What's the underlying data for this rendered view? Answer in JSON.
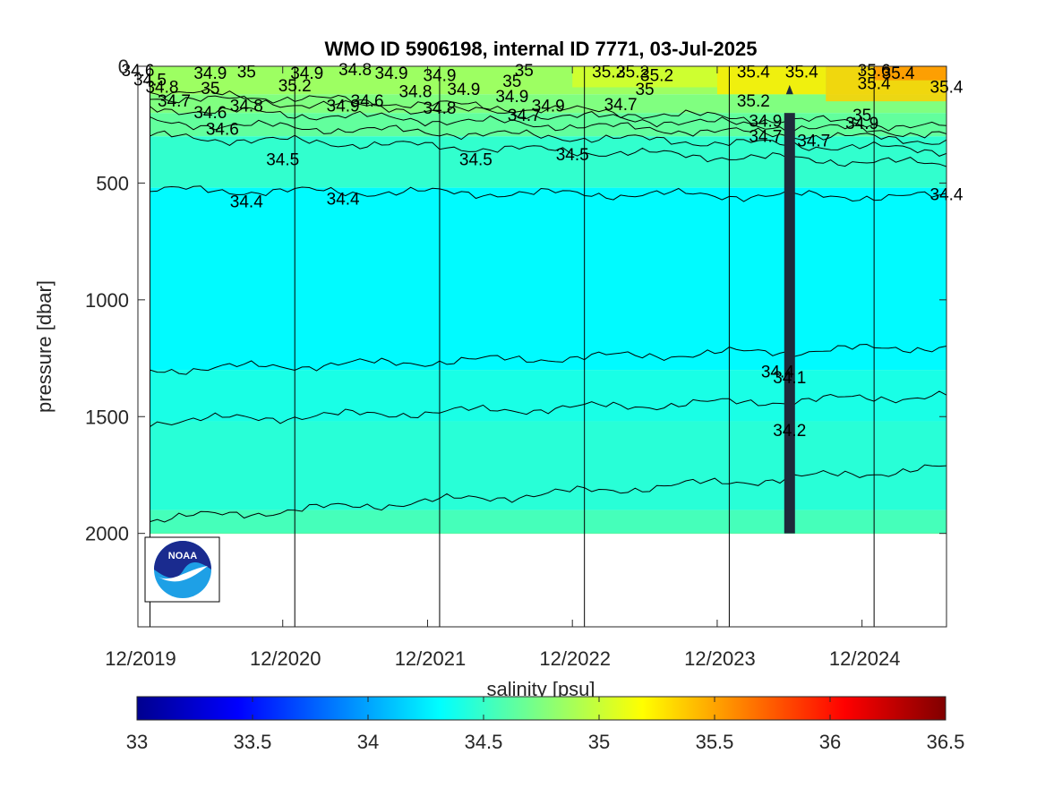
{
  "chart_data": {
    "type": "heatmap",
    "title": "WMO ID 5906198, internal ID 7771, 03-Jul-2025",
    "ylabel": "pressure [dbar]",
    "colorbar_label": "salinity [psu]",
    "ylim": [
      0,
      2400
    ],
    "y_reversed": true,
    "yticks": [
      0,
      500,
      1000,
      1500,
      2000
    ],
    "ytick_labels": [
      "0",
      "500",
      "1000",
      "1500",
      "2000"
    ],
    "xlim": [
      "2019-12",
      "2025-07"
    ],
    "xticks": [
      "2019-12",
      "2020-12",
      "2021-12",
      "2022-12",
      "2023-12",
      "2024-12"
    ],
    "xtick_labels": [
      "12/2019",
      "12/2020",
      "12/2021",
      "12/2022",
      "12/2023",
      "12/2024"
    ],
    "data_start": "2020-01",
    "data_end": "2025-07",
    "max_depth_dbar": 2000,
    "colorbar_range": [
      33,
      36.5
    ],
    "colorbar_ticks": [
      33,
      33.5,
      34,
      34.5,
      35,
      35.5,
      36,
      36.5
    ],
    "colorbar_tick_labels": [
      "33",
      "33.5",
      "34",
      "34.5",
      "35",
      "35.5",
      "36",
      "36.5"
    ],
    "colormap": "jet",
    "year_markers": [
      "2020-01",
      "2021-01",
      "2022-01",
      "2023-01",
      "2024-01",
      "2025-01"
    ],
    "anomaly": {
      "date": "2024-06",
      "pressure_range": [
        80,
        2000
      ]
    },
    "contours": [
      {
        "level": 34.1,
        "pressure_start": 1300,
        "pressure_end": 1200
      },
      {
        "level": 34.2,
        "pressure_start": 1520,
        "pressure_end": 1410
      },
      {
        "level": 34.4,
        "pressure_start": 1940,
        "pressure_end": 1720
      },
      {
        "level": 34.4,
        "pressure_start": 530,
        "pressure_end": 560
      },
      {
        "level": 34.5,
        "pressure_start": 300,
        "pressure_end": 420
      },
      {
        "level": 34.6,
        "pressure_start": 240,
        "pressure_end": 360
      },
      {
        "level": 34.7,
        "pressure_start": 180,
        "pressure_end": 320
      },
      {
        "level": 34.8,
        "pressure_start": 130,
        "pressure_end": 290
      },
      {
        "level": 34.9,
        "pressure_start": 110,
        "pressure_end": 260
      }
    ],
    "contour_labels": [
      {
        "text": "34.6",
        "date": "2019-12",
        "pressure": 20
      },
      {
        "text": "34.5",
        "date": "2020-01",
        "pressure": 60
      },
      {
        "text": "34.8",
        "date": "2020-02",
        "pressure": 90
      },
      {
        "text": "34.7",
        "date": "2020-03",
        "pressure": 150
      },
      {
        "text": "34.9",
        "date": "2020-06",
        "pressure": 30
      },
      {
        "text": "35",
        "date": "2020-06",
        "pressure": 95
      },
      {
        "text": "34.6",
        "date": "2020-06",
        "pressure": 200
      },
      {
        "text": "34.6",
        "date": "2020-07",
        "pressure": 270
      },
      {
        "text": "35",
        "date": "2020-09",
        "pressure": 25
      },
      {
        "text": "34.8",
        "date": "2020-09",
        "pressure": 170
      },
      {
        "text": "35.2",
        "date": "2021-01",
        "pressure": 85
      },
      {
        "text": "34.9",
        "date": "2021-02",
        "pressure": 30
      },
      {
        "text": "34.5",
        "date": "2020-12",
        "pressure": 400
      },
      {
        "text": "34.4",
        "date": "2020-09",
        "pressure": 580
      },
      {
        "text": "34.4",
        "date": "2021-05",
        "pressure": 570
      },
      {
        "text": "34.9",
        "date": "2021-05",
        "pressure": 170
      },
      {
        "text": "34.8",
        "date": "2021-06",
        "pressure": 15
      },
      {
        "text": "34.6",
        "date": "2021-07",
        "pressure": 150
      },
      {
        "text": "34.9",
        "date": "2021-09",
        "pressure": 30
      },
      {
        "text": "34.8",
        "date": "2021-11",
        "pressure": 110
      },
      {
        "text": "34.9",
        "date": "2022-01",
        "pressure": 40
      },
      {
        "text": "34.8",
        "date": "2022-01",
        "pressure": 180
      },
      {
        "text": "34.9",
        "date": "2022-03",
        "pressure": 100
      },
      {
        "text": "34.5",
        "date": "2022-04",
        "pressure": 400
      },
      {
        "text": "35",
        "date": "2022-08",
        "pressure": 20
      },
      {
        "text": "35",
        "date": "2022-07",
        "pressure": 65
      },
      {
        "text": "34.9",
        "date": "2022-07",
        "pressure": 130
      },
      {
        "text": "34.7",
        "date": "2022-08",
        "pressure": 210
      },
      {
        "text": "34.9",
        "date": "2022-10",
        "pressure": 170
      },
      {
        "text": "34.5",
        "date": "2022-12",
        "pressure": 380
      },
      {
        "text": "35.2",
        "date": "2023-03",
        "pressure": 25
      },
      {
        "text": "35.2",
        "date": "2023-05",
        "pressure": 25
      },
      {
        "text": "35.2",
        "date": "2023-07",
        "pressure": 40
      },
      {
        "text": "35",
        "date": "2023-06",
        "pressure": 100
      },
      {
        "text": "34.7",
        "date": "2023-04",
        "pressure": 165
      },
      {
        "text": "35.4",
        "date": "2024-03",
        "pressure": 25
      },
      {
        "text": "35.4",
        "date": "2024-07",
        "pressure": 25
      },
      {
        "text": "35.2",
        "date": "2024-03",
        "pressure": 150
      },
      {
        "text": "34.9",
        "date": "2024-04",
        "pressure": 235
      },
      {
        "text": "34.7",
        "date": "2024-04",
        "pressure": 300
      },
      {
        "text": "34.7",
        "date": "2024-08",
        "pressure": 320
      },
      {
        "text": "35.6",
        "date": "2025-01",
        "pressure": 20
      },
      {
        "text": "35.4",
        "date": "2025-01",
        "pressure": 75
      },
      {
        "text": "35.4",
        "date": "2025-03",
        "pressure": 30
      },
      {
        "text": "35.4",
        "date": "2025-07",
        "pressure": 90
      },
      {
        "text": "35",
        "date": "2024-12",
        "pressure": 210
      },
      {
        "text": "34.9",
        "date": "2024-12",
        "pressure": 245
      },
      {
        "text": "34.4",
        "date": "2025-07",
        "pressure": 550
      },
      {
        "text": "34.4",
        "date": "2024-05",
        "pressure": 1310
      },
      {
        "text": "34.1",
        "date": "2024-06",
        "pressure": 1335
      },
      {
        "text": "34.2",
        "date": "2024-06",
        "pressure": 1560
      }
    ]
  },
  "logo": {
    "text": "NOAA"
  }
}
